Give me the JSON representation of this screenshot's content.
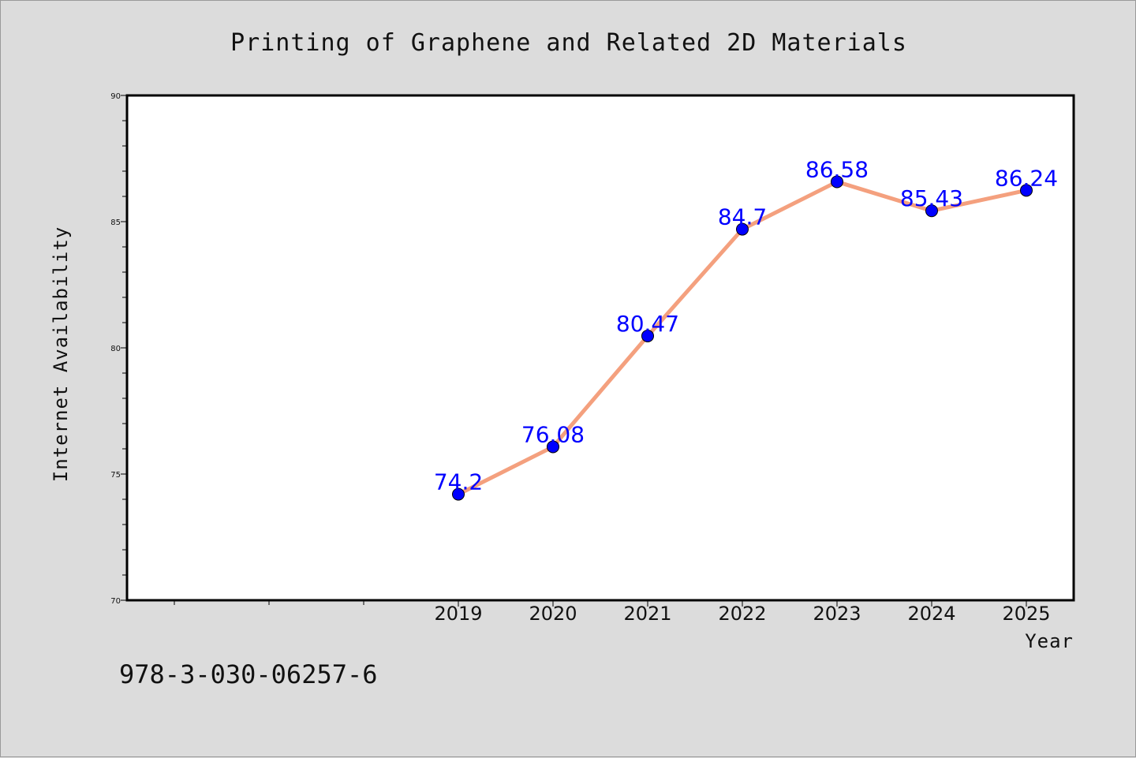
{
  "chart_data": {
    "type": "line",
    "title": "Printing of Graphene and Related 2D Materials",
    "xlabel": "Year",
    "ylabel": "Internet Availability",
    "x": [
      "2019",
      "2020",
      "2021",
      "2022",
      "2023",
      "2024",
      "2025"
    ],
    "series": [
      {
        "values": [
          74.2,
          76.08,
          80.47,
          84.7,
          86.58,
          85.43,
          86.24
        ],
        "labels": [
          "74.2",
          "76.08",
          "80.47",
          "84.7",
          "86.58",
          "85.43",
          "86.24"
        ]
      }
    ],
    "ylim": [
      70,
      90
    ],
    "yticks": [
      "70",
      "75",
      "80",
      "85",
      "90"
    ],
    "grid": false,
    "colors": {
      "line": "#f4a07e",
      "marker": "#0000ff",
      "data_label": "#0000ff",
      "background": "#dcdcdc",
      "plot_background": "#ffffff"
    }
  },
  "footnote": "978-3-030-06257-6"
}
